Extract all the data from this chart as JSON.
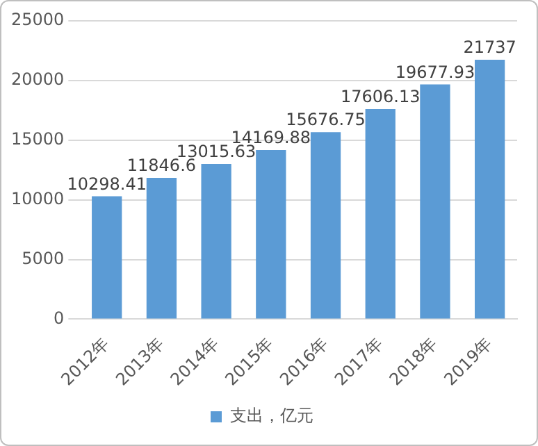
{
  "chart_data": {
    "type": "bar",
    "categories": [
      "2012年",
      "2013年",
      "2014年",
      "2015年",
      "2016年",
      "2017年",
      "2018年",
      "2019年"
    ],
    "series": [
      {
        "name": "支出，亿元",
        "color": "#5b9bd5",
        "values": [
          10298.41,
          11846.6,
          13015.63,
          14169.88,
          15676.75,
          17606.13,
          19677.93,
          21737
        ]
      }
    ],
    "ylim": [
      0,
      25000
    ],
    "yticks": [
      0,
      5000,
      10000,
      15000,
      20000,
      25000
    ],
    "grid": "y",
    "legend": "bottom",
    "data_labels": true
  }
}
